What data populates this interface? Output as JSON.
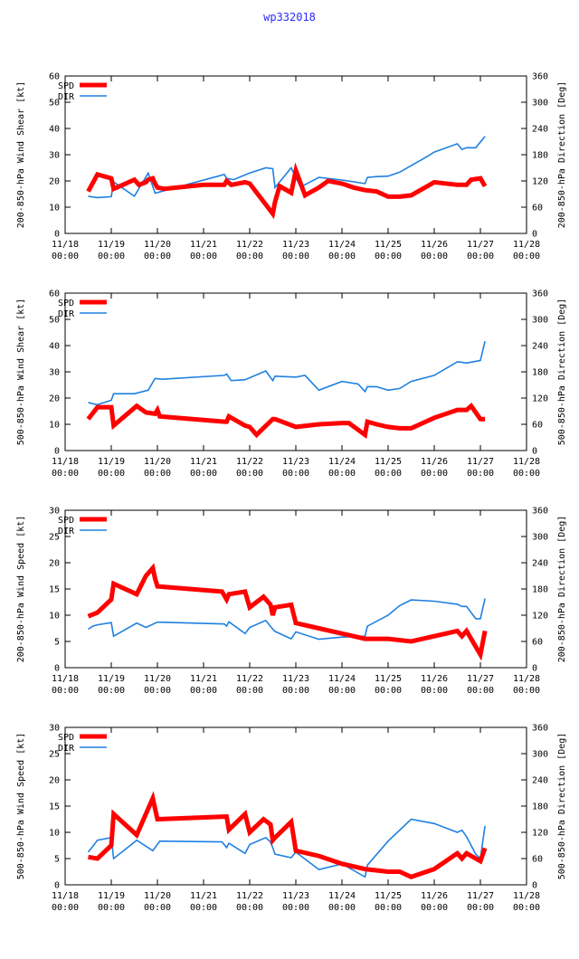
{
  "title": "wp332018",
  "colors": {
    "spd": "#ff0000",
    "dir": "#1f80e0",
    "axis": "#000000",
    "grid": "#999999"
  },
  "x_ticks": [
    [
      "11/18",
      "00:00"
    ],
    [
      "11/19",
      "00:00"
    ],
    [
      "11/20",
      "00:00"
    ],
    [
      "11/21",
      "00:00"
    ],
    [
      "11/22",
      "00:00"
    ],
    [
      "11/23",
      "00:00"
    ],
    [
      "11/24",
      "00:00"
    ],
    [
      "11/25",
      "00:00"
    ],
    [
      "11/26",
      "00:00"
    ],
    [
      "11/27",
      "00:00"
    ],
    [
      "11/28",
      "00:00"
    ]
  ],
  "legend": {
    "spd": "SPD",
    "dir": "DIR"
  },
  "chart_data": [
    {
      "type": "line",
      "ylabel": "200-850-hPa Wind Shear [kt]",
      "y2label": "200-850-hPa Direction [Deg]",
      "ylim": [
        0,
        60
      ],
      "yticks": [
        0,
        10,
        20,
        30,
        40,
        50,
        60
      ],
      "y2lim": [
        0,
        360
      ],
      "y2ticks": [
        0,
        60,
        120,
        180,
        240,
        300,
        360
      ],
      "xlim": [
        0,
        10
      ],
      "series": [
        {
          "name": "SPD",
          "axis": "left",
          "x": [
            0.5,
            0.7,
            1.0,
            1.05,
            1.25,
            1.5,
            1.6,
            1.75,
            1.8,
            1.9,
            1.95,
            2.0,
            2.15,
            3.0,
            3.45,
            3.5,
            3.6,
            3.9,
            4.0,
            4.35,
            4.5,
            4.55,
            4.65,
            4.9,
            5.0,
            5.2,
            5.5,
            5.7,
            6.0,
            6.25,
            6.5,
            6.75,
            7.0,
            7.25,
            7.5,
            8.0,
            8.5,
            8.7,
            8.8,
            9.0,
            9.1
          ],
          "values": [
            16,
            22.5,
            21,
            17,
            18.5,
            20.5,
            18.5,
            19.5,
            20.5,
            21,
            19,
            17.5,
            17,
            18.5,
            18.5,
            20,
            18.5,
            19.5,
            19,
            11,
            7.5,
            12,
            18,
            15.5,
            24,
            14.5,
            17.5,
            20,
            19,
            17.5,
            16.5,
            16,
            14,
            14,
            14.5,
            19.5,
            18.5,
            18.5,
            20.5,
            21,
            18
          ]
        },
        {
          "name": "DIR",
          "axis": "right",
          "x": [
            0.5,
            0.7,
            1.0,
            1.05,
            1.5,
            1.8,
            1.95,
            3.45,
            3.5,
            3.65,
            4.0,
            4.35,
            4.5,
            4.55,
            4.9,
            5.1,
            5.5,
            6.0,
            6.5,
            6.55,
            6.75,
            7.0,
            7.25,
            7.5,
            7.75,
            8.0,
            8.5,
            8.6,
            8.7,
            8.9,
            9.1
          ],
          "values": [
            85,
            82,
            84,
            118,
            85,
            138,
            92,
            135,
            126,
            123,
            138,
            150,
            148,
            105,
            150,
            106,
            128,
            122,
            114,
            128,
            130,
            131,
            140,
            155,
            170,
            186,
            205,
            192,
            196,
            196,
            222
          ]
        }
      ]
    },
    {
      "type": "line",
      "ylabel": "500-850-hPa Wind Shear [kt]",
      "y2label": "500-850-hPa Direction [Deg]",
      "ylim": [
        0,
        60
      ],
      "yticks": [
        0,
        10,
        20,
        30,
        40,
        50,
        60
      ],
      "y2lim": [
        0,
        360
      ],
      "y2ticks": [
        0,
        60,
        120,
        180,
        240,
        300,
        360
      ],
      "xlim": [
        0,
        10
      ],
      "series": [
        {
          "name": "SPD",
          "axis": "left",
          "x": [
            0.5,
            0.7,
            1.0,
            1.05,
            1.55,
            1.75,
            1.95,
            2.0,
            2.05,
            3.45,
            3.5,
            3.55,
            3.9,
            4.0,
            4.15,
            4.5,
            4.55,
            5.0,
            5.5,
            6.0,
            6.15,
            6.5,
            6.55,
            6.75,
            7.0,
            7.25,
            7.5,
            8.0,
            8.5,
            8.7,
            8.8,
            9.0,
            9.1
          ],
          "values": [
            12,
            16.5,
            16.5,
            9.5,
            17,
            14.5,
            14,
            15.5,
            13,
            11,
            11,
            13,
            9.5,
            9,
            6,
            12,
            12,
            9,
            10,
            10.5,
            10.5,
            6,
            11,
            10,
            9,
            8.5,
            8.5,
            12.5,
            15.5,
            15.5,
            17,
            12,
            12
          ]
        },
        {
          "name": "DIR",
          "axis": "right",
          "x": [
            0.5,
            0.6,
            0.7,
            1.0,
            1.05,
            1.5,
            1.8,
            1.95,
            2.1,
            3.45,
            3.5,
            3.6,
            3.9,
            4.35,
            4.5,
            4.55,
            5.0,
            5.2,
            5.5,
            6.0,
            6.35,
            6.5,
            6.55,
            6.75,
            7.0,
            7.25,
            7.5,
            8.0,
            8.5,
            8.6,
            8.7,
            9.0,
            9.1
          ],
          "values": [
            110,
            107,
            105,
            115,
            130,
            130,
            138,
            165,
            163,
            172,
            175,
            160,
            162,
            182,
            160,
            170,
            168,
            172,
            138,
            158,
            152,
            135,
            146,
            146,
            138,
            142,
            158,
            172,
            203,
            202,
            200,
            206,
            250
          ]
        }
      ]
    },
    {
      "type": "line",
      "ylabel": "200-850-hPa Wind Speed [kt]",
      "y2label": "200-850-hPa Direction [Deg]",
      "ylim": [
        0,
        30
      ],
      "yticks": [
        0,
        5,
        10,
        15,
        20,
        25,
        30
      ],
      "y2lim": [
        0,
        360
      ],
      "y2ticks": [
        0,
        60,
        120,
        180,
        240,
        300,
        360
      ],
      "xlim": [
        0,
        10
      ],
      "series": [
        {
          "name": "SPD",
          "axis": "left",
          "x": [
            0.5,
            0.7,
            1.0,
            1.05,
            1.55,
            1.75,
            1.9,
            1.95,
            2.0,
            3.4,
            3.5,
            3.55,
            3.9,
            4.0,
            4.3,
            4.45,
            4.5,
            4.55,
            4.9,
            5.0,
            5.5,
            6.0,
            6.5,
            7.0,
            7.5,
            8.0,
            8.5,
            8.6,
            8.7,
            8.9,
            9.0,
            9.1
          ],
          "values": [
            9.8,
            10.5,
            13,
            16,
            14,
            17.5,
            19,
            17,
            15.5,
            14.5,
            13,
            14,
            14.5,
            11.5,
            13.5,
            12,
            10,
            11.5,
            12,
            8.5,
            7.5,
            6.5,
            5.5,
            5.5,
            5,
            6,
            7,
            6,
            7,
            4,
            2.5,
            7
          ]
        },
        {
          "name": "DIR",
          "axis": "right",
          "x": [
            0.5,
            0.6,
            0.7,
            1.0,
            1.05,
            1.55,
            1.75,
            2.0,
            2.05,
            3.45,
            3.5,
            3.55,
            3.9,
            4.0,
            4.35,
            4.5,
            4.55,
            4.9,
            5.0,
            5.5,
            6.0,
            6.5,
            6.55,
            7.0,
            7.25,
            7.5,
            8.0,
            8.5,
            8.6,
            8.7,
            8.9,
            9.0,
            9.1
          ],
          "values": [
            88,
            95,
            98,
            103,
            72,
            102,
            92,
            104,
            104,
            100,
            95,
            105,
            78,
            92,
            108,
            88,
            83,
            66,
            82,
            65,
            70,
            72,
            95,
            120,
            142,
            155,
            152,
            145,
            140,
            140,
            112,
            112,
            158
          ]
        }
      ]
    },
    {
      "type": "line",
      "ylabel": "500-850-hPa Wind Speed [kt]",
      "y2label": "500-850-hPa Direction [Deg]",
      "ylim": [
        0,
        30
      ],
      "yticks": [
        0,
        5,
        10,
        15,
        20,
        25,
        30
      ],
      "y2lim": [
        0,
        360
      ],
      "y2ticks": [
        0,
        60,
        120,
        180,
        240,
        300,
        360
      ],
      "xlim": [
        0,
        10
      ],
      "series": [
        {
          "name": "SPD",
          "axis": "left",
          "x": [
            0.5,
            0.7,
            1.0,
            1.05,
            1.55,
            1.9,
            1.95,
            2.0,
            3.45,
            3.5,
            3.55,
            3.9,
            4.0,
            4.3,
            4.45,
            4.5,
            4.55,
            4.9,
            5.0,
            5.5,
            6.0,
            6.5,
            7.0,
            7.25,
            7.5,
            8.0,
            8.5,
            8.6,
            8.7,
            9.0,
            9.1
          ],
          "values": [
            5.3,
            5,
            7.5,
            13.5,
            9.5,
            16.5,
            14.5,
            12.5,
            13,
            13,
            10.5,
            13.5,
            10,
            12.5,
            11.5,
            8.5,
            9,
            12,
            6.5,
            5.5,
            4,
            3,
            2.5,
            2.5,
            1.5,
            3,
            6,
            5,
            6,
            4.5,
            7
          ]
        },
        {
          "name": "DIR",
          "axis": "right",
          "x": [
            0.5,
            0.6,
            0.7,
            1.0,
            1.05,
            1.55,
            1.9,
            1.95,
            2.05,
            3.4,
            3.5,
            3.55,
            3.9,
            4.0,
            4.35,
            4.45,
            4.5,
            4.55,
            4.9,
            5.0,
            5.5,
            6.0,
            6.5,
            6.55,
            7.0,
            7.5,
            8.0,
            8.5,
            8.6,
            8.7,
            8.9,
            9.0,
            9.1
          ],
          "values": [
            75,
            88,
            102,
            108,
            60,
            102,
            78,
            85,
            100,
            98,
            85,
            95,
            72,
            92,
            108,
            98,
            85,
            70,
            62,
            75,
            35,
            48,
            18,
            45,
            100,
            150,
            140,
            120,
            125,
            110,
            70,
            60,
            135
          ]
        }
      ]
    }
  ]
}
